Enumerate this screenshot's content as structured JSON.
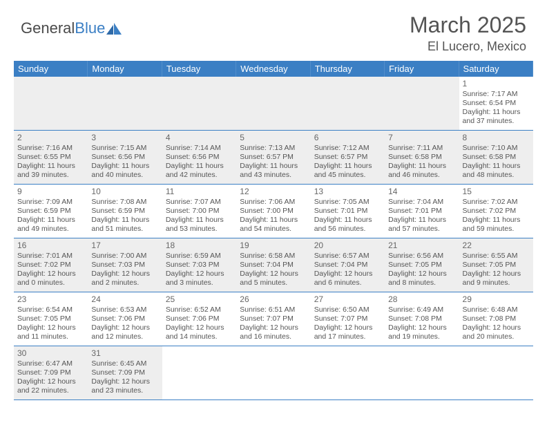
{
  "brand": {
    "part1": "General",
    "part2": "Blue"
  },
  "title": "March 2025",
  "location": "El Lucero, Mexico",
  "theme": {
    "header_bg": "#3b7fc4",
    "header_fg": "#ffffff",
    "shade_bg": "#eeeeee",
    "border": "#3b7fc4",
    "text": "#555555",
    "title_color": "#545454"
  },
  "weekdays": [
    "Sunday",
    "Monday",
    "Tuesday",
    "Wednesday",
    "Thursday",
    "Friday",
    "Saturday"
  ],
  "weeks": [
    [
      {
        "blank": true,
        "shaded": true
      },
      {
        "blank": true,
        "shaded": true
      },
      {
        "blank": true,
        "shaded": true
      },
      {
        "blank": true,
        "shaded": true
      },
      {
        "blank": true,
        "shaded": true
      },
      {
        "blank": true,
        "shaded": true
      },
      {
        "day": "1",
        "sunrise": "Sunrise: 7:17 AM",
        "sunset": "Sunset: 6:54 PM",
        "daylight": "Daylight: 11 hours and 37 minutes."
      }
    ],
    [
      {
        "day": "2",
        "shaded": true,
        "sunrise": "Sunrise: 7:16 AM",
        "sunset": "Sunset: 6:55 PM",
        "daylight": "Daylight: 11 hours and 39 minutes."
      },
      {
        "day": "3",
        "shaded": true,
        "sunrise": "Sunrise: 7:15 AM",
        "sunset": "Sunset: 6:56 PM",
        "daylight": "Daylight: 11 hours and 40 minutes."
      },
      {
        "day": "4",
        "shaded": true,
        "sunrise": "Sunrise: 7:14 AM",
        "sunset": "Sunset: 6:56 PM",
        "daylight": "Daylight: 11 hours and 42 minutes."
      },
      {
        "day": "5",
        "shaded": true,
        "sunrise": "Sunrise: 7:13 AM",
        "sunset": "Sunset: 6:57 PM",
        "daylight": "Daylight: 11 hours and 43 minutes."
      },
      {
        "day": "6",
        "shaded": true,
        "sunrise": "Sunrise: 7:12 AM",
        "sunset": "Sunset: 6:57 PM",
        "daylight": "Daylight: 11 hours and 45 minutes."
      },
      {
        "day": "7",
        "shaded": true,
        "sunrise": "Sunrise: 7:11 AM",
        "sunset": "Sunset: 6:58 PM",
        "daylight": "Daylight: 11 hours and 46 minutes."
      },
      {
        "day": "8",
        "shaded": true,
        "sunrise": "Sunrise: 7:10 AM",
        "sunset": "Sunset: 6:58 PM",
        "daylight": "Daylight: 11 hours and 48 minutes."
      }
    ],
    [
      {
        "day": "9",
        "sunrise": "Sunrise: 7:09 AM",
        "sunset": "Sunset: 6:59 PM",
        "daylight": "Daylight: 11 hours and 49 minutes."
      },
      {
        "day": "10",
        "sunrise": "Sunrise: 7:08 AM",
        "sunset": "Sunset: 6:59 PM",
        "daylight": "Daylight: 11 hours and 51 minutes."
      },
      {
        "day": "11",
        "sunrise": "Sunrise: 7:07 AM",
        "sunset": "Sunset: 7:00 PM",
        "daylight": "Daylight: 11 hours and 53 minutes."
      },
      {
        "day": "12",
        "sunrise": "Sunrise: 7:06 AM",
        "sunset": "Sunset: 7:00 PM",
        "daylight": "Daylight: 11 hours and 54 minutes."
      },
      {
        "day": "13",
        "sunrise": "Sunrise: 7:05 AM",
        "sunset": "Sunset: 7:01 PM",
        "daylight": "Daylight: 11 hours and 56 minutes."
      },
      {
        "day": "14",
        "sunrise": "Sunrise: 7:04 AM",
        "sunset": "Sunset: 7:01 PM",
        "daylight": "Daylight: 11 hours and 57 minutes."
      },
      {
        "day": "15",
        "sunrise": "Sunrise: 7:02 AM",
        "sunset": "Sunset: 7:02 PM",
        "daylight": "Daylight: 11 hours and 59 minutes."
      }
    ],
    [
      {
        "day": "16",
        "shaded": true,
        "sunrise": "Sunrise: 7:01 AM",
        "sunset": "Sunset: 7:02 PM",
        "daylight": "Daylight: 12 hours and 0 minutes."
      },
      {
        "day": "17",
        "shaded": true,
        "sunrise": "Sunrise: 7:00 AM",
        "sunset": "Sunset: 7:03 PM",
        "daylight": "Daylight: 12 hours and 2 minutes."
      },
      {
        "day": "18",
        "shaded": true,
        "sunrise": "Sunrise: 6:59 AM",
        "sunset": "Sunset: 7:03 PM",
        "daylight": "Daylight: 12 hours and 3 minutes."
      },
      {
        "day": "19",
        "shaded": true,
        "sunrise": "Sunrise: 6:58 AM",
        "sunset": "Sunset: 7:04 PM",
        "daylight": "Daylight: 12 hours and 5 minutes."
      },
      {
        "day": "20",
        "shaded": true,
        "sunrise": "Sunrise: 6:57 AM",
        "sunset": "Sunset: 7:04 PM",
        "daylight": "Daylight: 12 hours and 6 minutes."
      },
      {
        "day": "21",
        "shaded": true,
        "sunrise": "Sunrise: 6:56 AM",
        "sunset": "Sunset: 7:05 PM",
        "daylight": "Daylight: 12 hours and 8 minutes."
      },
      {
        "day": "22",
        "shaded": true,
        "sunrise": "Sunrise: 6:55 AM",
        "sunset": "Sunset: 7:05 PM",
        "daylight": "Daylight: 12 hours and 9 minutes."
      }
    ],
    [
      {
        "day": "23",
        "sunrise": "Sunrise: 6:54 AM",
        "sunset": "Sunset: 7:05 PM",
        "daylight": "Daylight: 12 hours and 11 minutes."
      },
      {
        "day": "24",
        "sunrise": "Sunrise: 6:53 AM",
        "sunset": "Sunset: 7:06 PM",
        "daylight": "Daylight: 12 hours and 12 minutes."
      },
      {
        "day": "25",
        "sunrise": "Sunrise: 6:52 AM",
        "sunset": "Sunset: 7:06 PM",
        "daylight": "Daylight: 12 hours and 14 minutes."
      },
      {
        "day": "26",
        "sunrise": "Sunrise: 6:51 AM",
        "sunset": "Sunset: 7:07 PM",
        "daylight": "Daylight: 12 hours and 16 minutes."
      },
      {
        "day": "27",
        "sunrise": "Sunrise: 6:50 AM",
        "sunset": "Sunset: 7:07 PM",
        "daylight": "Daylight: 12 hours and 17 minutes."
      },
      {
        "day": "28",
        "sunrise": "Sunrise: 6:49 AM",
        "sunset": "Sunset: 7:08 PM",
        "daylight": "Daylight: 12 hours and 19 minutes."
      },
      {
        "day": "29",
        "sunrise": "Sunrise: 6:48 AM",
        "sunset": "Sunset: 7:08 PM",
        "daylight": "Daylight: 12 hours and 20 minutes."
      }
    ],
    [
      {
        "day": "30",
        "shaded": true,
        "sunrise": "Sunrise: 6:47 AM",
        "sunset": "Sunset: 7:09 PM",
        "daylight": "Daylight: 12 hours and 22 minutes."
      },
      {
        "day": "31",
        "shaded": true,
        "sunrise": "Sunrise: 6:45 AM",
        "sunset": "Sunset: 7:09 PM",
        "daylight": "Daylight: 12 hours and 23 minutes."
      },
      {
        "blank": true
      },
      {
        "blank": true
      },
      {
        "blank": true
      },
      {
        "blank": true
      },
      {
        "blank": true
      }
    ]
  ]
}
